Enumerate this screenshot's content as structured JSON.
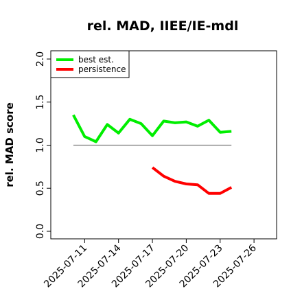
{
  "chart_data": {
    "type": "line",
    "title": "rel. MAD, IIEE/IE-mdl",
    "ylabel": "rel. MAD score",
    "xlabel": "",
    "ylim": [
      0,
      2
    ],
    "yticks": [
      "0.0",
      "0.5",
      "1.0",
      "1.5",
      "2.0"
    ],
    "xlim": [
      "2025-07-08",
      "2025-07-28"
    ],
    "xticks": [
      "2025-07-11",
      "2025-07-14",
      "2025-07-17",
      "2025-07-20",
      "2025-07-23",
      "2025-07-26"
    ],
    "grid": false,
    "legend_position": "top-left",
    "reference_line": {
      "y": 1.0,
      "from": "2025-07-10",
      "to": "2025-07-24",
      "color": "#777777"
    },
    "series": [
      {
        "name": "best est.",
        "color": "#00ee00",
        "x": [
          "2025-07-10",
          "2025-07-11",
          "2025-07-12",
          "2025-07-13",
          "2025-07-14",
          "2025-07-15",
          "2025-07-16",
          "2025-07-17",
          "2025-07-18",
          "2025-07-19",
          "2025-07-20",
          "2025-07-21",
          "2025-07-22",
          "2025-07-23",
          "2025-07-24"
        ],
        "values": [
          1.35,
          1.1,
          1.04,
          1.24,
          1.14,
          1.3,
          1.25,
          1.11,
          1.28,
          1.26,
          1.27,
          1.22,
          1.29,
          1.15,
          1.16
        ]
      },
      {
        "name": "persistence",
        "color": "#ff0000",
        "x": [
          "2025-07-17",
          "2025-07-18",
          "2025-07-19",
          "2025-07-20",
          "2025-07-21",
          "2025-07-22",
          "2025-07-23",
          "2025-07-24"
        ],
        "values": [
          0.74,
          0.64,
          0.58,
          0.55,
          0.54,
          0.44,
          0.44,
          0.51
        ]
      }
    ]
  }
}
